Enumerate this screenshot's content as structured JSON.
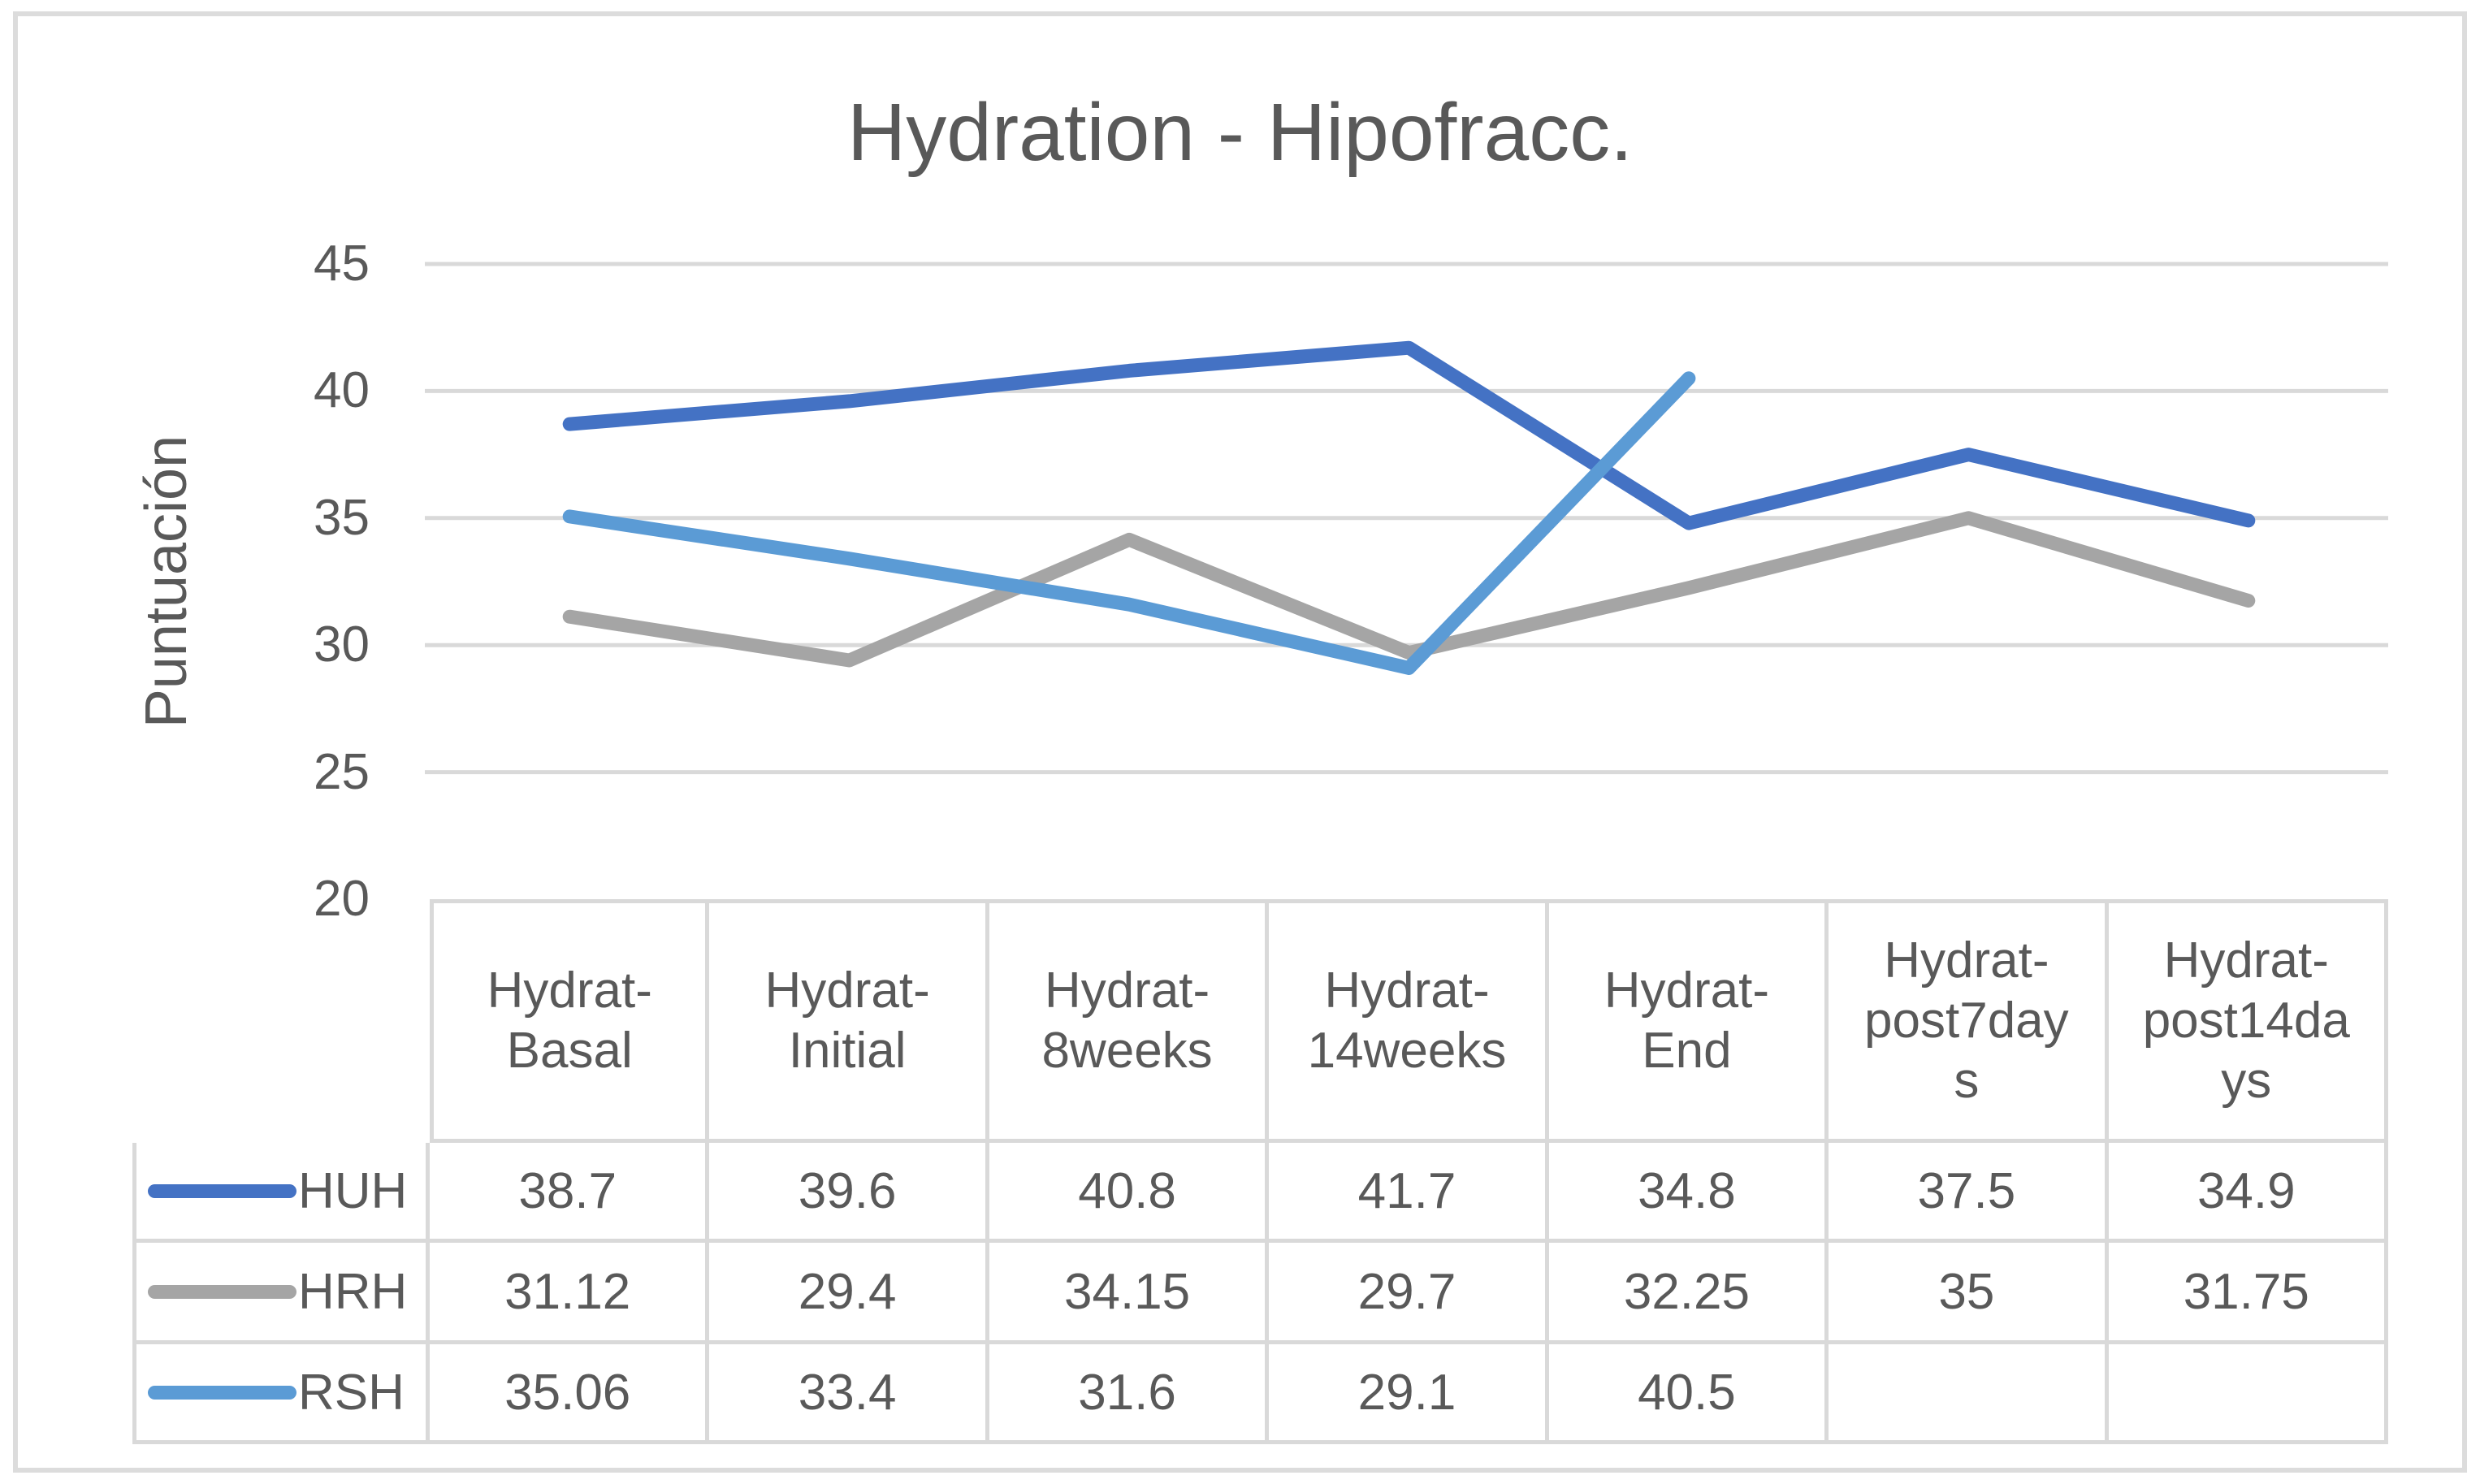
{
  "chart_data": {
    "type": "line",
    "title": "Hydration - Hipofracc.",
    "xlabel": "",
    "ylabel": "Puntuación",
    "ylim": [
      20,
      45
    ],
    "yticks": [
      45,
      40,
      35,
      30,
      25,
      20
    ],
    "grid": true,
    "legend_position": "data-table-left-column",
    "categories": [
      "Hydrat-Basal",
      "Hydrat-Initial",
      "Hydrat-8weeks",
      "Hydrat-14weeks",
      "Hydrat-End",
      "Hydrat-post7days",
      "Hydrat-post14days"
    ],
    "series": [
      {
        "name": "HUH",
        "color": "#4472C4",
        "values": [
          38.7,
          39.6,
          40.8,
          41.7,
          34.8,
          37.5,
          34.9
        ]
      },
      {
        "name": "HRH",
        "color": "#A5A5A5",
        "values": [
          31.12,
          29.4,
          34.15,
          29.7,
          32.25,
          35,
          31.75
        ]
      },
      {
        "name": "RSH",
        "color": "#5B9BD5",
        "values": [
          35.06,
          33.4,
          31.6,
          29.1,
          40.5,
          null,
          null
        ]
      }
    ]
  },
  "table": {
    "column_headers": [
      "Hydrat-\nBasal",
      "Hydrat-\nInitial",
      "Hydrat-\n8weeks",
      "Hydrat-\n14weeks",
      "Hydrat-\nEnd",
      "Hydrat-\npost7day\ns",
      "Hydrat-\npost14da\nys"
    ]
  },
  "style": {
    "gridline_color": "#D9D9D9",
    "text_color": "#595959",
    "border_color": "#DCDCDC"
  }
}
